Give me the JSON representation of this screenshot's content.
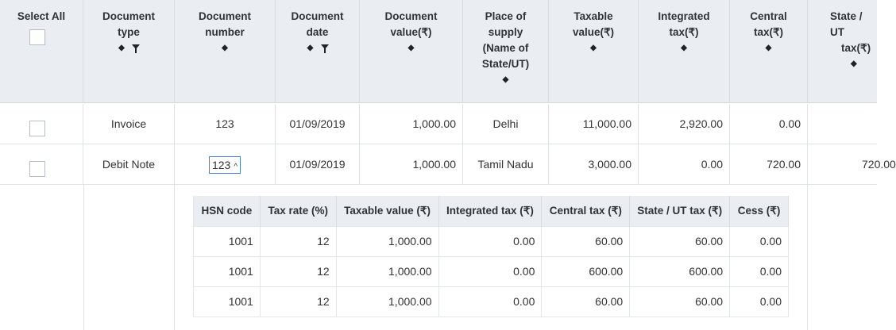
{
  "header": {
    "select_all": "Select All",
    "doc_type": [
      "Document",
      "type"
    ],
    "doc_number": [
      "Document",
      "number"
    ],
    "doc_date": [
      "Document",
      "date"
    ],
    "doc_value": [
      "Document",
      "value(₹)"
    ],
    "place_supply": [
      "Place of",
      "supply",
      "(Name of",
      "State/UT)"
    ],
    "taxable": [
      "Taxable",
      "value(₹)"
    ],
    "integrated": [
      "Integrated",
      "tax(₹)"
    ],
    "central": [
      "Central",
      "tax(₹)"
    ],
    "state": [
      "State / UT",
      "tax(₹)"
    ]
  },
  "rows": [
    {
      "type": "Invoice",
      "number": "123",
      "date": "01/09/2019",
      "value": "1,000.00",
      "place": "Delhi",
      "taxable": "11,000.00",
      "integrated": "2,920.00",
      "central": "0.00",
      "state": ""
    },
    {
      "type": "Debit Note",
      "number": "123",
      "date": "01/09/2019",
      "value": "1,000.00",
      "place": "Tamil Nadu",
      "taxable": "3,000.00",
      "integrated": "0.00",
      "central": "720.00",
      "state": "720.00"
    }
  ],
  "details": {
    "headers": [
      "HSN code",
      "Tax rate (%)",
      "Taxable value (₹)",
      "Integrated tax (₹)",
      "Central tax (₹)",
      "State / UT tax (₹)",
      "Cess (₹)"
    ],
    "rows": [
      [
        "1001",
        "12",
        "1,000.00",
        "0.00",
        "60.00",
        "60.00",
        "0.00"
      ],
      [
        "1001",
        "12",
        "1,000.00",
        "0.00",
        "600.00",
        "600.00",
        "0.00"
      ],
      [
        "1001",
        "12",
        "1,000.00",
        "0.00",
        "60.00",
        "60.00",
        "0.00"
      ]
    ]
  },
  "icons": {
    "sort": "sort-icon",
    "filter": "filter-icon",
    "collapse": "chevron-up-icon"
  }
}
